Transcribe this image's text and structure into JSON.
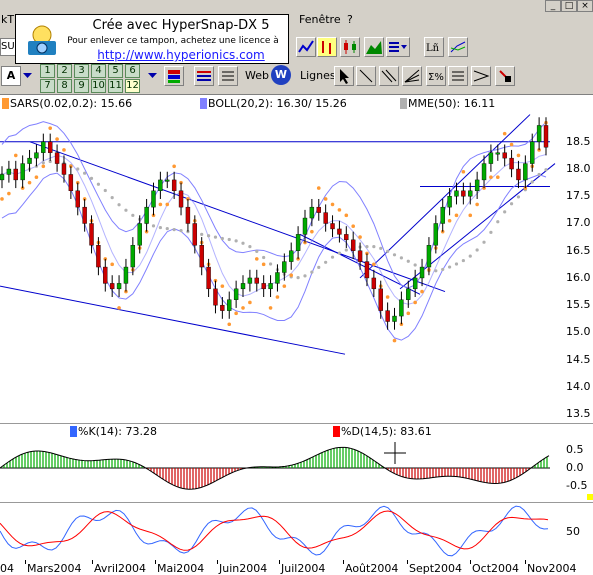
{
  "menu": {
    "items": [
      "kT",
      "Fenêtre",
      "?"
    ],
    "symbol": "SU"
  },
  "stamp": {
    "line1": "Crée avec HyperSnap-DX 5",
    "line2": "Pour enlever ce tampon, achetez une licence à",
    "line3": "http://www.hyperionics.com"
  },
  "toolbar": {
    "letter_select": "A",
    "numbers_row1": [
      "1",
      "2",
      "3",
      "4",
      "5",
      "6"
    ],
    "numbers_row2": [
      "7",
      "8",
      "9",
      "10",
      "11",
      "12"
    ],
    "web_label": "Web",
    "lines_label": "Lignes"
  },
  "legends": {
    "sars": "SARS(0.02,0.2): 15.66",
    "boll": "BOLL(20,2): 16.30/ 15.26",
    "mme": "MME(50): 16.11",
    "k": "%K(14): 73.28",
    "d": "%D(14,5): 83.61"
  },
  "colors": {
    "sars": "#ff9933",
    "boll": "#8080ff",
    "mme": "#b0b0b0",
    "up_candle": "#00aa00",
    "down_candle": "#cc0000",
    "trendline": "#0000cc",
    "k": "#3366ff",
    "d": "#ff0000"
  },
  "price_axis": [
    "18.5",
    "18.0",
    "17.5",
    "17.0",
    "16.5",
    "16.0",
    "15.5",
    "15.0",
    "14.5",
    "14.0",
    "13.5"
  ],
  "osc_axis": [
    "0.5",
    "0.0",
    "-0.5"
  ],
  "stoch_axis": [
    "50"
  ],
  "months": [
    "Mars2004",
    "Avril2004",
    "Mai2004",
    "Juin2004",
    "Juil2004",
    "Août2004",
    "Sept2004",
    "Oct2004",
    "Nov2004"
  ],
  "edge_label": "04",
  "chart_data": {
    "type": "candlestick",
    "y_range": [
      13.3,
      18.9
    ],
    "horizontal_levels": [
      18.5,
      17.68
    ],
    "closes": [
      17.9,
      18.0,
      17.8,
      18.1,
      18.2,
      18.3,
      18.5,
      18.3,
      18.1,
      17.9,
      17.6,
      17.3,
      17.0,
      16.6,
      16.2,
      15.9,
      15.8,
      15.9,
      16.2,
      16.6,
      17.0,
      17.3,
      17.6,
      17.8,
      17.8,
      17.6,
      17.3,
      17.0,
      16.6,
      16.2,
      15.8,
      15.5,
      15.4,
      15.6,
      15.8,
      15.9,
      16.0,
      15.9,
      15.8,
      15.9,
      16.1,
      16.3,
      16.5,
      16.8,
      17.1,
      17.3,
      17.2,
      17.0,
      16.9,
      16.8,
      16.7,
      16.5,
      16.3,
      16.0,
      15.8,
      15.4,
      15.2,
      15.3,
      15.6,
      15.8,
      16.0,
      16.2,
      16.6,
      17.0,
      17.3,
      17.5,
      17.6,
      17.5,
      17.6,
      17.8,
      18.1,
      18.3,
      18.3,
      18.2,
      18.0,
      17.8,
      18.1,
      18.5,
      18.8,
      18.4
    ]
  }
}
